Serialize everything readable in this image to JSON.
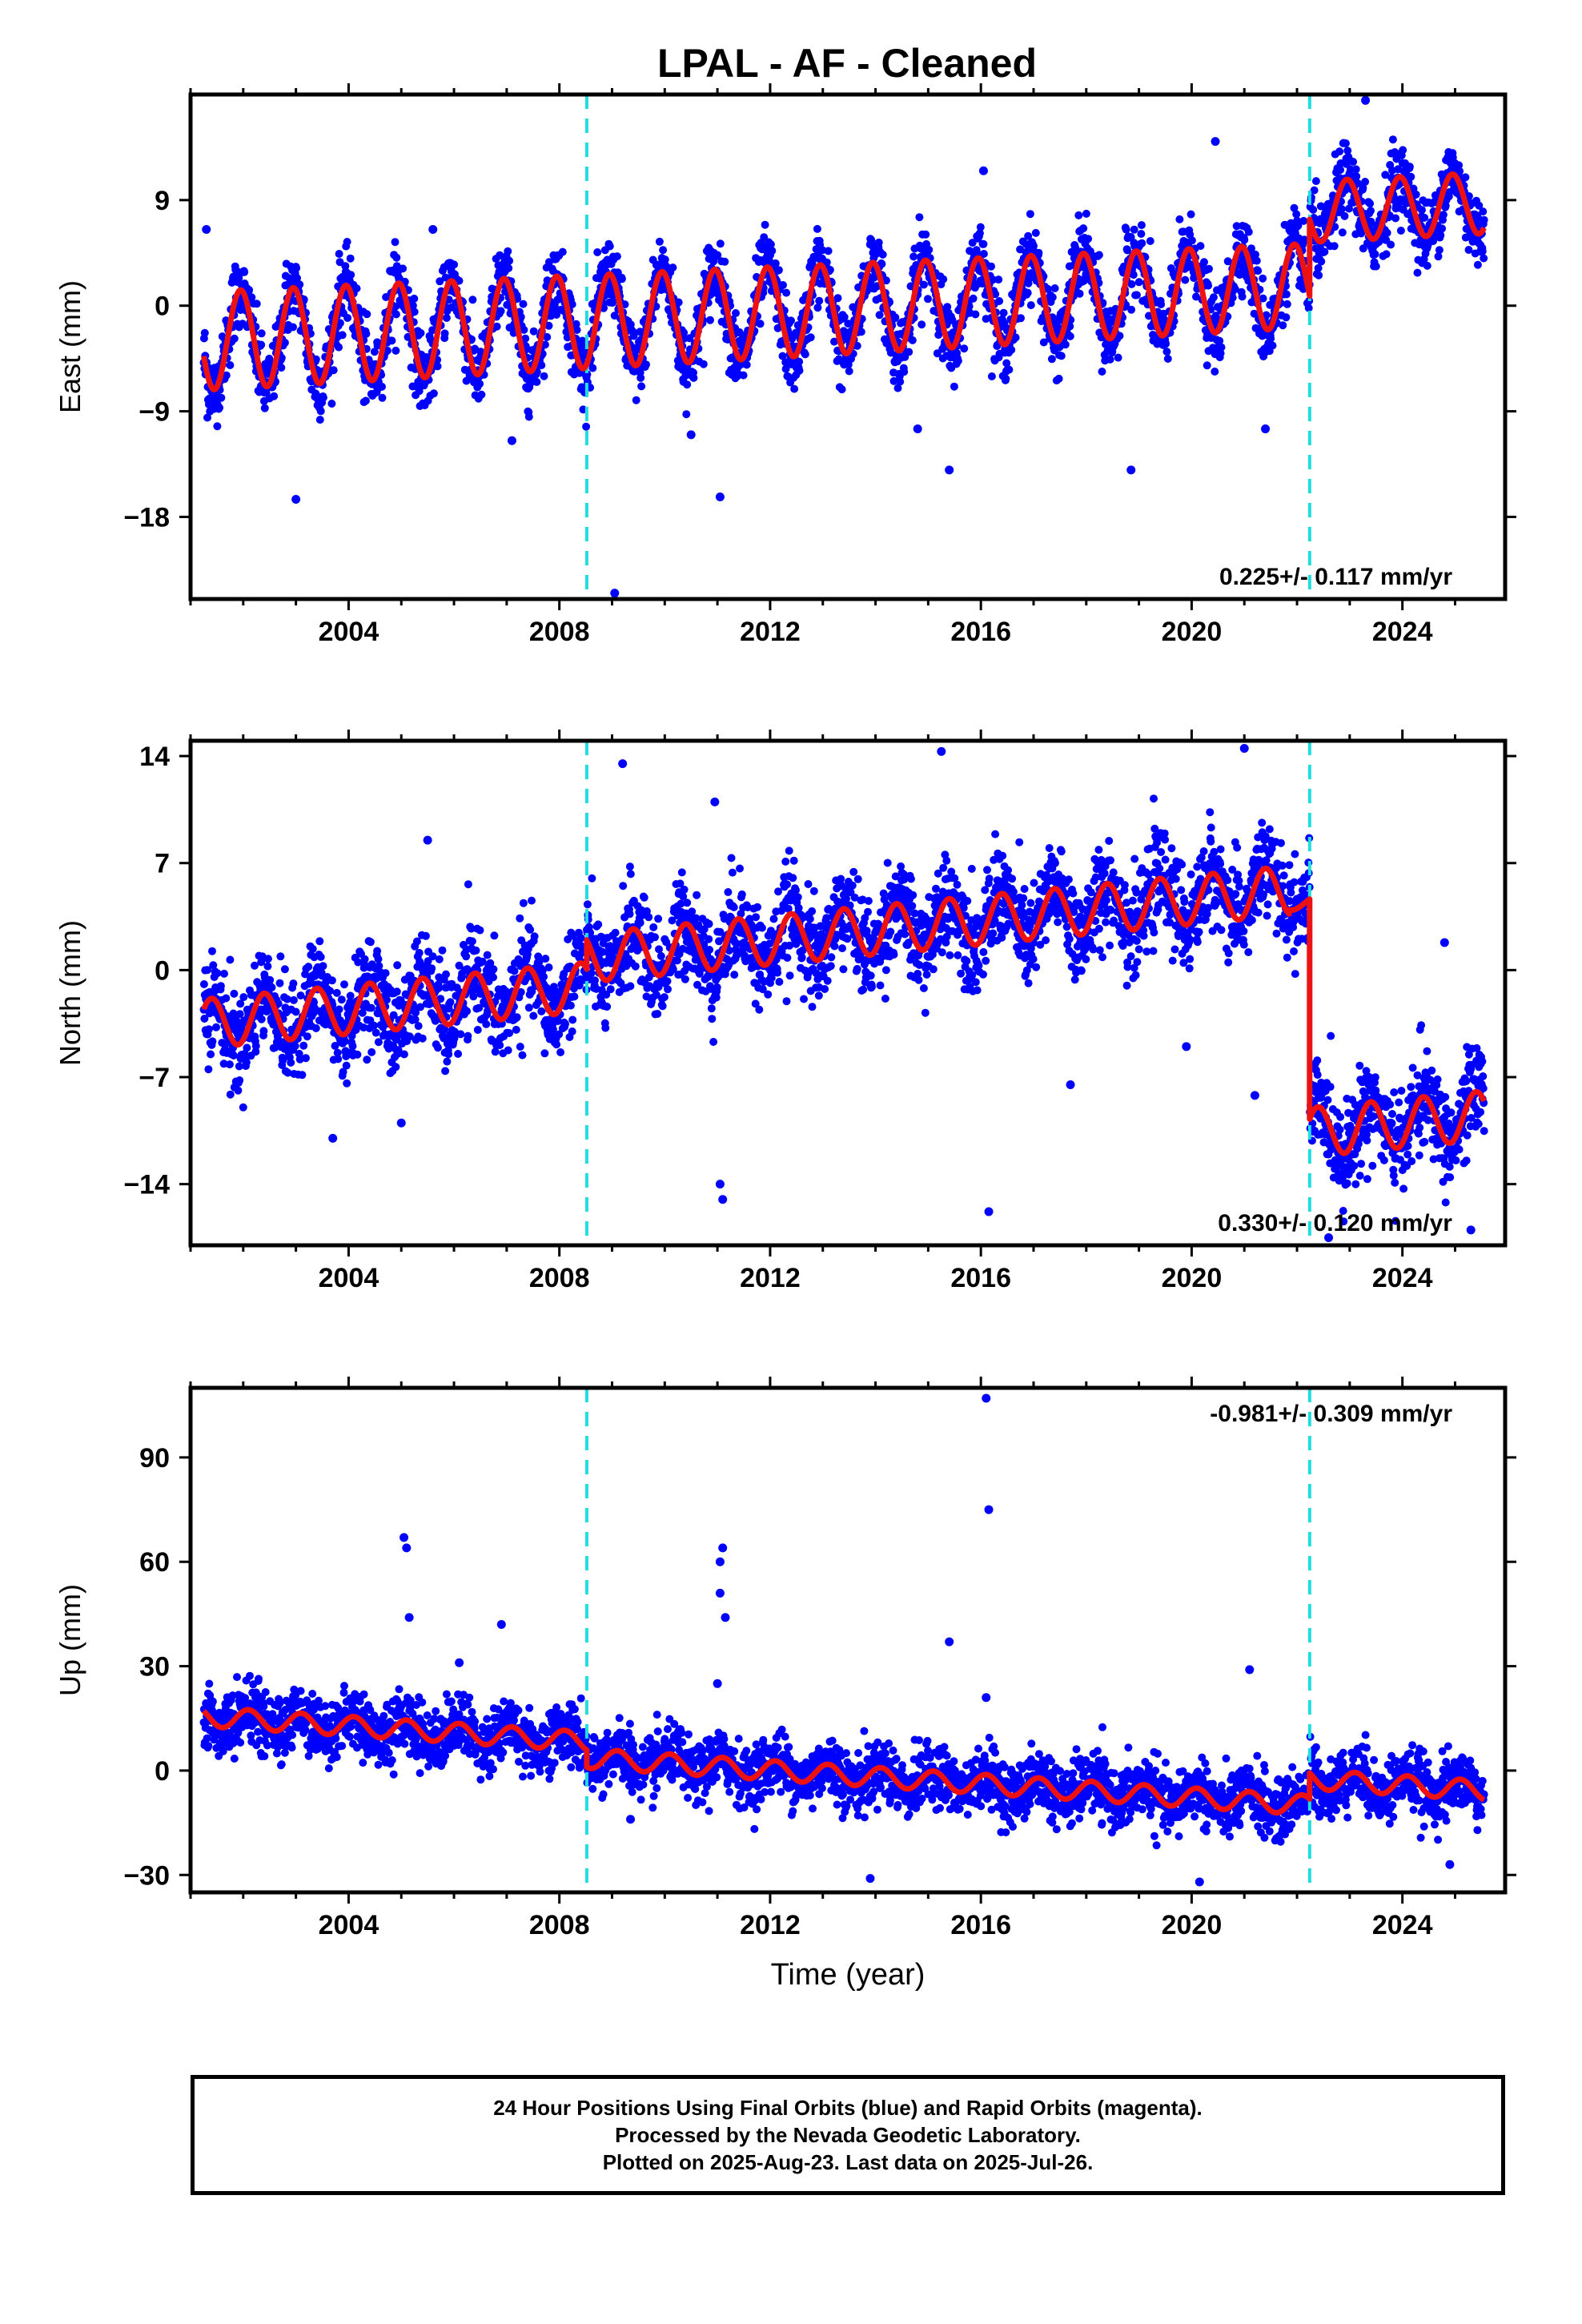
{
  "title": "LPAL  - AF - Cleaned",
  "colors": {
    "data": "#0000ff",
    "model": "#ee1111",
    "offset_line": "#22dddd",
    "frame": "#000000"
  },
  "chart_data": [
    {
      "type": "scatter",
      "panel": "east",
      "ylabel": "East (mm)",
      "xlabel": "",
      "xlim": [
        2001.0,
        2025.95
      ],
      "ylim": [
        -25,
        18
      ],
      "yticks": [
        -18,
        -9,
        0,
        9
      ],
      "xticks": [
        2004,
        2008,
        2012,
        2016,
        2020,
        2024
      ],
      "offsets": [
        2008.52,
        2022.24
      ],
      "rate_label": "0.225+/- 0.117 mm/yr",
      "rate_position": "bottom-right",
      "model": {
        "start": 2001.25,
        "end": 2025.55,
        "segments": [
          {
            "from": 2001.25,
            "to": 2022.24,
            "base_at_start": -3.0,
            "rate": 0.225,
            "amplitude": 4.2,
            "amp_growth": -0.03,
            "phase": 0.95
          },
          {
            "from": 2022.24,
            "to": 2025.55,
            "base_at_start": 8.0,
            "rate": 0.225,
            "amplitude": 2.6,
            "amp_growth": 0,
            "phase": 0.95
          }
        ]
      },
      "noise_sd": 1.8,
      "outliers": [
        [
          2003.0,
          -16.5
        ],
        [
          2009.05,
          -24.5
        ],
        [
          2011.05,
          -16.3
        ],
        [
          2010.5,
          -11.0
        ],
        [
          2014.8,
          -10.5
        ],
        [
          2015.4,
          -14.0
        ],
        [
          2018.85,
          -14.0
        ],
        [
          2021.4,
          -10.5
        ],
        [
          2016.05,
          11.5
        ],
        [
          2020.45,
          14.0
        ],
        [
          2023.3,
          17.5
        ],
        [
          2005.6,
          6.5
        ],
        [
          2001.3,
          6.5
        ],
        [
          2007.1,
          -11.5
        ]
      ]
    },
    {
      "type": "scatter",
      "panel": "north",
      "ylabel": "North (mm)",
      "xlabel": "",
      "xlim": [
        2001.0,
        2025.95
      ],
      "ylim": [
        -18,
        15
      ],
      "yticks": [
        -14,
        -7,
        0,
        7,
        14
      ],
      "xticks": [
        2004,
        2008,
        2012,
        2016,
        2020,
        2024
      ],
      "offsets": [
        2008.52,
        2022.24
      ],
      "rate_label": "0.330+/- 0.120 mm/yr",
      "rate_position": "bottom-right",
      "model": {
        "start": 2001.25,
        "end": 2025.55,
        "segments": [
          {
            "from": 2001.25,
            "to": 2008.52,
            "base_at_start": -3.5,
            "rate": 0.33,
            "amplitude": 1.6,
            "amp_growth": 0,
            "phase": 0.4
          },
          {
            "from": 2008.52,
            "to": 2021.85,
            "base_at_start": 0.8,
            "rate": 0.33,
            "amplitude": 1.6,
            "amp_growth": 0,
            "phase": 0.4
          },
          {
            "from": 2021.85,
            "to": 2022.24,
            "base_at_start": 4.3,
            "rate": 0.33,
            "amplitude": 0.4,
            "amp_growth": 0,
            "phase": 0.4
          },
          {
            "from": 2022.24,
            "to": 2025.55,
            "base_at_start": -10.6,
            "rate": 0.33,
            "amplitude": 1.6,
            "amp_growth": 0,
            "phase": 0.4
          }
        ]
      },
      "noise_sd": 1.8,
      "outliers": [
        [
          2003.7,
          -11.0
        ],
        [
          2005.0,
          -10.0
        ],
        [
          2005.5,
          8.5
        ],
        [
          2009.2,
          13.5
        ],
        [
          2010.95,
          11.0
        ],
        [
          2011.05,
          -14.0
        ],
        [
          2011.1,
          -15.0
        ],
        [
          2015.25,
          14.3
        ],
        [
          2016.15,
          -15.8
        ],
        [
          2017.7,
          -7.5
        ],
        [
          2019.9,
          -5.0
        ],
        [
          2021.2,
          -8.2
        ],
        [
          2021.0,
          14.5
        ],
        [
          2024.8,
          1.8
        ],
        [
          2025.3,
          -17.0
        ],
        [
          2022.6,
          -17.5
        ]
      ]
    },
    {
      "type": "scatter",
      "panel": "up",
      "ylabel": "Up (mm)",
      "xlabel": "Time (year)",
      "xlim": [
        2001.0,
        2025.95
      ],
      "ylim": [
        -35,
        110
      ],
      "yticks": [
        -30,
        0,
        30,
        60,
        90
      ],
      "xticks": [
        2004,
        2008,
        2012,
        2016,
        2020,
        2024
      ],
      "offsets": [
        2008.52,
        2022.24
      ],
      "rate_label": "-0.981+/- 0.309 mm/yr",
      "rate_position": "top-right",
      "model": {
        "start": 2001.25,
        "end": 2025.55,
        "segments": [
          {
            "from": 2001.25,
            "to": 2008.52,
            "base_at_start": 15.5,
            "rate": -0.981,
            "amplitude": 2.8,
            "amp_growth": 0,
            "phase": 0.1
          },
          {
            "from": 2008.52,
            "to": 2022.24,
            "base_at_start": 3.5,
            "rate": -0.981,
            "amplitude": 2.8,
            "amp_growth": 0,
            "phase": 0.1
          },
          {
            "from": 2022.24,
            "to": 2025.55,
            "base_at_start": -2.5,
            "rate": -0.981,
            "amplitude": 2.8,
            "amp_growth": 0,
            "phase": 0.1
          }
        ]
      },
      "noise_sd": 5.0,
      "outliers": [
        [
          2005.05,
          67.0
        ],
        [
          2005.1,
          64.0
        ],
        [
          2005.15,
          44.0
        ],
        [
          2006.1,
          31.0
        ],
        [
          2006.9,
          42.0
        ],
        [
          2011.05,
          60.0
        ],
        [
          2011.1,
          64.0
        ],
        [
          2011.05,
          51.0
        ],
        [
          2011.15,
          44.0
        ],
        [
          2011.0,
          25.0
        ],
        [
          2013.9,
          -31.0
        ],
        [
          2015.4,
          37.0
        ],
        [
          2016.1,
          107.0
        ],
        [
          2016.15,
          75.0
        ],
        [
          2016.1,
          21.0
        ],
        [
          2021.1,
          29.0
        ],
        [
          2020.15,
          -32.0
        ],
        [
          2024.9,
          -27.0
        ],
        [
          2009.35,
          -14.0
        ]
      ]
    }
  ],
  "footer": {
    "line1": "24 Hour Positions Using Final Orbits (blue) and Rapid Orbits (magenta).",
    "line2": "Processed by the Nevada Geodetic Laboratory.",
    "line3": "Plotted on 2025-Aug-23. Last data on 2025-Jul-26."
  }
}
